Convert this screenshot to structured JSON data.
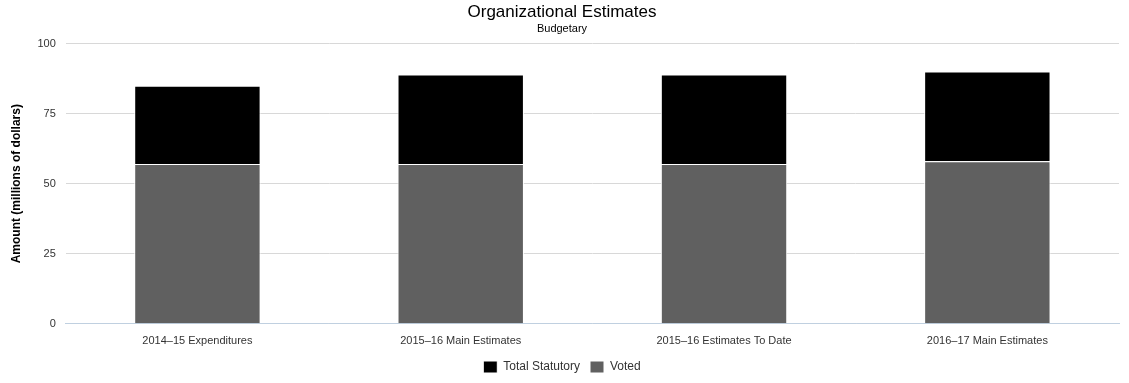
{
  "chart_data": {
    "type": "bar",
    "title": "Organizational Estimates",
    "subtitle": "Budgetary",
    "y_label": "Amount (millions of dollars)",
    "categories": [
      "2014–15 Expenditures",
      "2015–16 Main Estimates",
      "2015–16 Estimates To Date",
      "2016–17 Main Estimates"
    ],
    "series": [
      {
        "name": "Total Statutory",
        "color": "#000000",
        "values": [
          28,
          32,
          32,
          32
        ]
      },
      {
        "name": "Voted",
        "color": "#606060",
        "values": [
          57,
          57,
          57,
          58
        ]
      }
    ],
    "stacked": true,
    "ylim": [
      0,
      100
    ],
    "yticks": [
      0,
      25,
      50,
      75,
      100
    ],
    "grid": true,
    "legend": "bottom"
  }
}
